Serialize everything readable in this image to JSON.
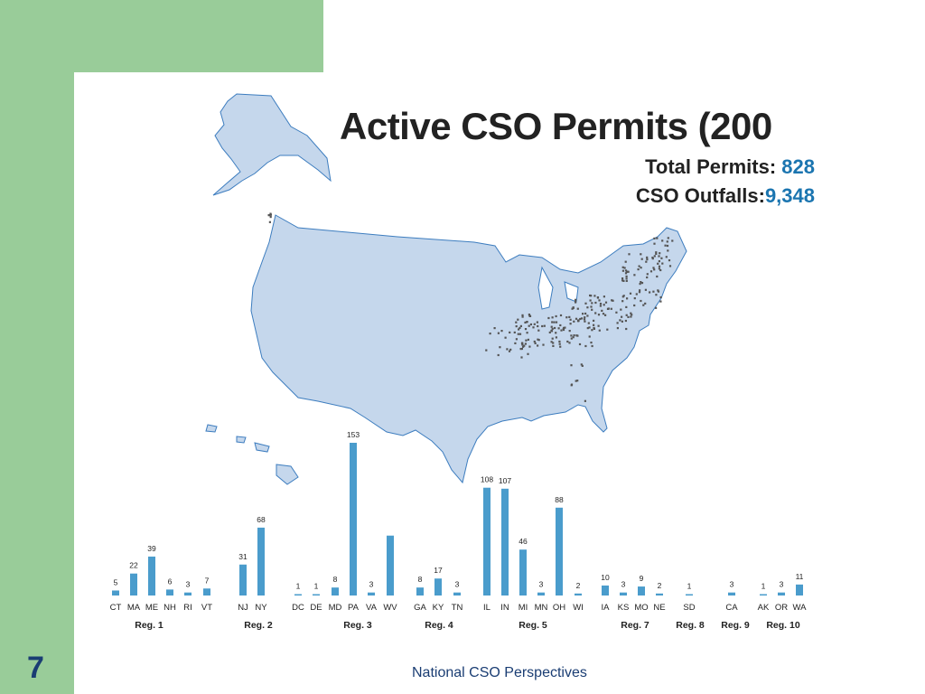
{
  "slide": {
    "page_number": "7",
    "footer": "National CSO Perspectives"
  },
  "header": {
    "title": "Active CSO Permits (200",
    "total_permits_label": "Total Permits:",
    "total_permits_value": "828",
    "outfalls_label": "CSO Outfalls:",
    "outfalls_value": "9,348"
  },
  "colors": {
    "background_band": "#99cc99",
    "map_fill": "#c5d7ec",
    "map_stroke": "#3d7dbf",
    "bar": "#4a9ccc",
    "accent": "#1b75b0"
  },
  "chart_data": {
    "type": "bar",
    "ylim": [
      0,
      160
    ],
    "categories": [
      "CT",
      "MA",
      "ME",
      "NH",
      "RI",
      "VT",
      "NJ",
      "NY",
      "DC",
      "DE",
      "MD",
      "PA",
      "VA",
      "WV",
      "GA",
      "KY",
      "TN",
      "IL",
      "IN",
      "MI",
      "MN",
      "OH",
      "WI",
      "IA",
      "KS",
      "MO",
      "NE",
      "SD",
      "CA",
      "AK",
      "OR",
      "WA"
    ],
    "values": [
      5,
      22,
      39,
      6,
      3,
      7,
      31,
      68,
      1,
      1,
      8,
      153,
      3,
      null,
      8,
      17,
      3,
      108,
      107,
      46,
      3,
      88,
      2,
      10,
      3,
      9,
      2,
      1,
      3,
      1,
      3,
      11
    ],
    "data_labels": [
      "5",
      "22",
      "39",
      "6",
      "3",
      "7",
      "31",
      "68",
      "1",
      "1",
      "8",
      "153",
      "3",
      "",
      "8",
      "17",
      "3",
      "108",
      "107",
      "46",
      "3",
      "88",
      "2",
      "10",
      "3",
      "9",
      "2",
      "1",
      "3",
      "1",
      "3",
      "11"
    ],
    "est_values": [
      5,
      22,
      39,
      6,
      3,
      7,
      31,
      68,
      1,
      1,
      8,
      153,
      3,
      60,
      8,
      17,
      3,
      108,
      107,
      46,
      3,
      88,
      2,
      10,
      3,
      9,
      2,
      1,
      3,
      1,
      3,
      11
    ],
    "regions": [
      {
        "label": "Reg. 1",
        "states": [
          "CT",
          "MA",
          "ME",
          "NH",
          "RI",
          "VT"
        ]
      },
      {
        "label": "Reg. 2",
        "states": [
          "NJ",
          "NY"
        ]
      },
      {
        "label": "Reg. 3",
        "states": [
          "DC",
          "DE",
          "MD",
          "PA",
          "VA",
          "WV"
        ]
      },
      {
        "label": "Reg. 4",
        "states": [
          "GA",
          "KY",
          "TN"
        ]
      },
      {
        "label": "Reg. 5",
        "states": [
          "IL",
          "IN",
          "MI",
          "MN",
          "OH",
          "WI"
        ]
      },
      {
        "label": "Reg. 7",
        "states": [
          "IA",
          "KS",
          "MO",
          "NE"
        ]
      },
      {
        "label": "Reg. 8",
        "states": [
          "SD"
        ]
      },
      {
        "label": "Reg. 9",
        "states": [
          "CA"
        ]
      },
      {
        "label": "Reg. 10",
        "states": [
          "AK",
          "OR",
          "WA"
        ]
      }
    ]
  }
}
